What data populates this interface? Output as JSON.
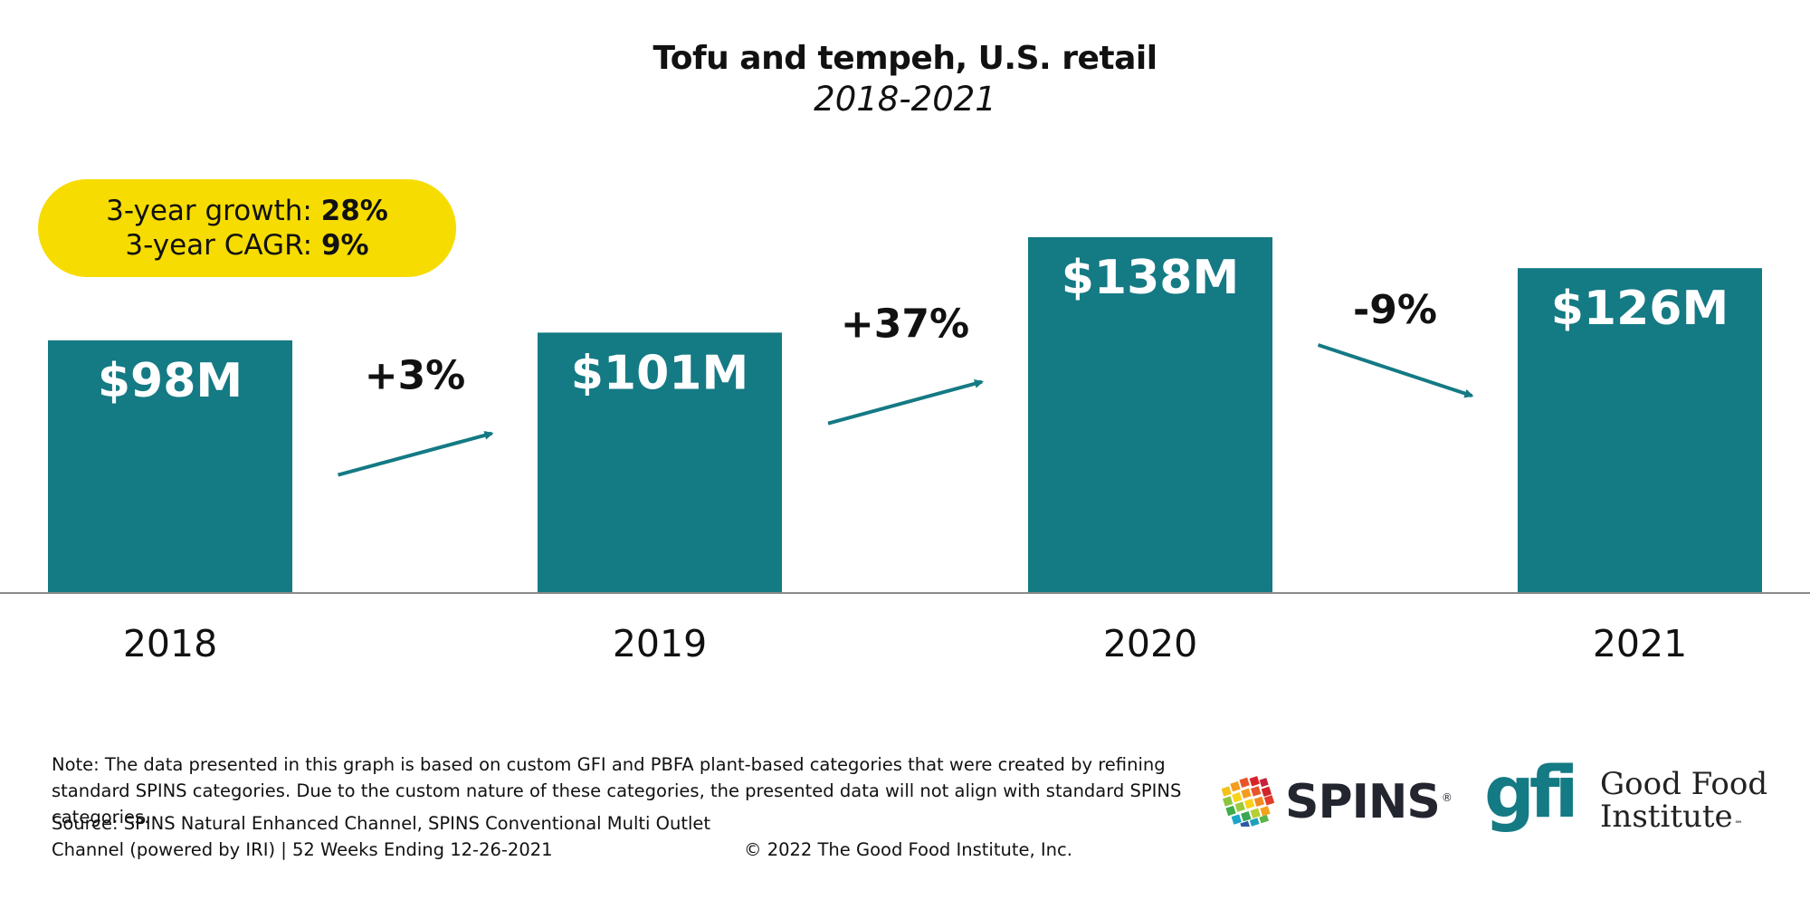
{
  "chart_data": {
    "type": "bar",
    "title": "Tofu and tempeh, U.S. retail",
    "subtitle": "2018-2021",
    "categories": [
      "2018",
      "2019",
      "2020",
      "2021"
    ],
    "values": [
      98,
      101,
      138,
      126
    ],
    "value_labels": [
      "$98M",
      "$101M",
      "$138M",
      "$126M"
    ],
    "unit": "$M",
    "ylim": [
      0,
      138
    ],
    "changes": [
      {
        "from": "2018",
        "to": "2019",
        "label": "+3%",
        "value": 3
      },
      {
        "from": "2019",
        "to": "2020",
        "label": "+37%",
        "value": 37
      },
      {
        "from": "2020",
        "to": "2021",
        "label": "-9%",
        "value": -9
      }
    ],
    "bar_color": "#147a84",
    "xlabel": "",
    "ylabel": ""
  },
  "summary": {
    "growth_label": "3-year growth:",
    "growth_value": "28%",
    "cagr_label": "3-year CAGR:",
    "cagr_value": "9%",
    "pill_color": "#f6dc00"
  },
  "footer": {
    "note": "Note: The data presented in this graph is based on custom GFI and PBFA plant-based categories that were created by refining standard SPINS categories. Due to the custom nature of these categories, the presented data will not align with standard SPINS categories.",
    "source_line1": "Source: SPINS Natural Enhanced Channel, SPINS Conventional Multi Outlet",
    "source_line2": "Channel (powered by IRI) | 52 Weeks Ending 12-26-2021",
    "copyright": "© 2022 The Good Food Institute, Inc."
  },
  "logos": {
    "spins_text": "SPINS",
    "spins_reg": "®",
    "gfi_mark": "gfi",
    "gfi_line1": "Good Food",
    "gfi_line2": "Institute",
    "gfi_tm": "℠",
    "gfi_color": "#147a84"
  }
}
